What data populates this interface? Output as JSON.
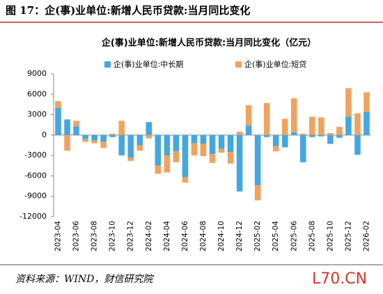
{
  "header": {
    "title": "图 17：企(事)业单位:新增人民币贷款:当月同比变化"
  },
  "chart_data": {
    "type": "bar",
    "stacked": true,
    "title": "企(事)业单位:新增人民币贷款:当月同比变化（亿元）",
    "categories": [
      "2023-04",
      null,
      "2023-06",
      null,
      "2023-08",
      null,
      "2023-10",
      null,
      "2023-12",
      null,
      "2024-02",
      null,
      "2024-04",
      null,
      "2024-06",
      null,
      "2024-08",
      null,
      "2024-10",
      null,
      "2024-12",
      null,
      "2025-02",
      null,
      "2025-04",
      null,
      "2025-06",
      null,
      "2025-08",
      null,
      "2025-10",
      null,
      "2025-12",
      null,
      "2026-02"
    ],
    "series": [
      {
        "name": "企(事)业单位:中长期",
        "color": "#45a7e0",
        "values": [
          4000,
          2300,
          1300,
          -600,
          -800,
          -1000,
          -300,
          -3000,
          -3300,
          -1500,
          1900,
          -4500,
          -3000,
          -2400,
          -6200,
          -1200,
          -1300,
          -2800,
          -2000,
          -2500,
          -8300,
          1400,
          -7400,
          -300,
          -1600,
          -1800,
          400,
          -4000,
          -300,
          -200,
          -1300,
          -400,
          2700,
          -2900,
          3400
        ]
      },
      {
        "name": "企(事)业单位:短贷",
        "color": "#f0a35e",
        "values": [
          1000,
          -2300,
          800,
          -400,
          -400,
          -900,
          200,
          2100,
          -500,
          -800,
          -500,
          -1200,
          -2500,
          -1600,
          -800,
          -1800,
          -1800,
          -1300,
          -600,
          -1700,
          500,
          3000,
          -2200,
          4700,
          -800,
          2400,
          5000,
          200,
          2700,
          2600,
          300,
          1200,
          4200,
          3200,
          2900
        ]
      }
    ],
    "ylim": [
      -12000,
      9000
    ],
    "yticks": [
      -12000,
      -9000,
      -6000,
      -3000,
      0,
      3000,
      6000,
      9000
    ],
    "legend": "top"
  },
  "footer": {
    "source": "资料来源：WIND，财信研究院",
    "watermark": "L70.CN"
  }
}
